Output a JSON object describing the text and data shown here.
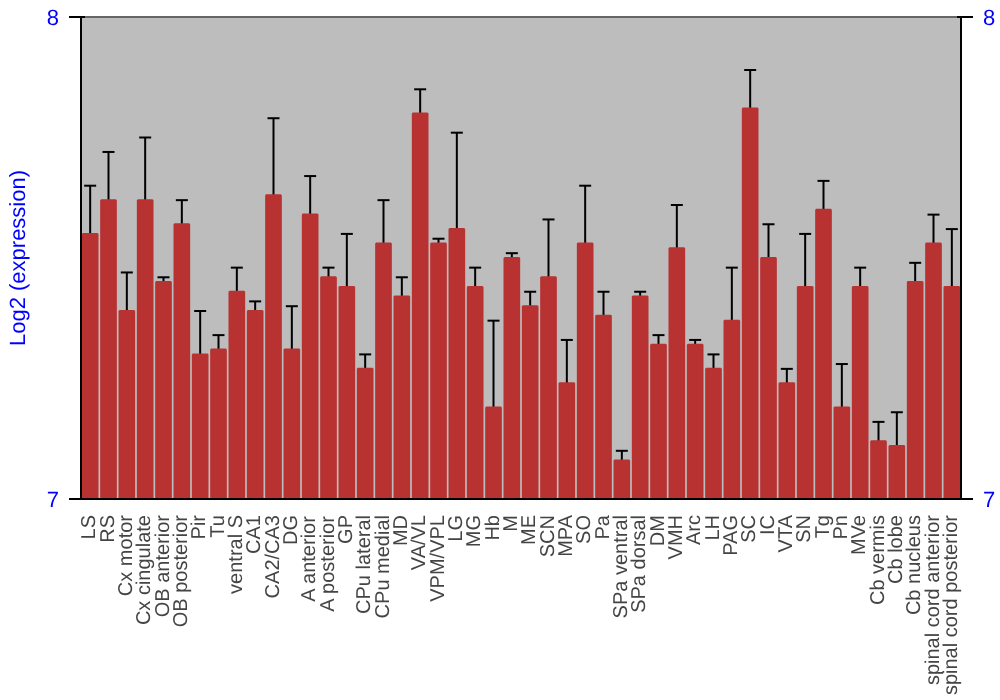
{
  "chart_data": {
    "type": "bar",
    "ylabel": "Log2 (expression)",
    "categories": [
      "LS",
      "RS",
      "Cx motor",
      "Cx cingulate",
      "OB anterior",
      "OB posterior",
      "Pir",
      "Tu",
      "ventral S",
      "CA1",
      "CA2/CA3",
      "DG",
      "A anterior",
      "A posterior",
      "GP",
      "CPu lateral",
      "CPu medial",
      "MD",
      "VA/VL",
      "VPM/VPL",
      "LG",
      "MG",
      "Hb",
      "M",
      "ME",
      "SCN",
      "MPA",
      "SO",
      "Pa",
      "SPa ventral",
      "SPa dorsal",
      "DM",
      "VMH",
      "Arc",
      "LH",
      "PAG",
      "SC",
      "IC",
      "VTA",
      "SN",
      "Tg",
      "Pn",
      "MVe",
      "Cb vermis",
      "Cb lobe",
      "Cb nucleus",
      "spinal cord anterior",
      "spinal cord posterior"
    ],
    "values": [
      7.55,
      7.62,
      7.39,
      7.62,
      7.45,
      7.57,
      7.3,
      7.31,
      7.43,
      7.39,
      7.63,
      7.31,
      7.59,
      7.46,
      7.44,
      7.27,
      7.53,
      7.42,
      7.8,
      7.53,
      7.56,
      7.44,
      7.19,
      7.5,
      7.4,
      7.46,
      7.24,
      7.53,
      7.38,
      7.08,
      7.42,
      7.32,
      7.52,
      7.32,
      7.27,
      7.37,
      7.81,
      7.5,
      7.24,
      7.44,
      7.6,
      7.19,
      7.44,
      7.12,
      7.11,
      7.45,
      7.53,
      7.44
    ],
    "errors": [
      0.1,
      0.1,
      0.08,
      0.13,
      0.01,
      0.05,
      0.09,
      0.03,
      0.05,
      0.02,
      0.16,
      0.09,
      0.08,
      0.02,
      0.11,
      0.03,
      0.09,
      0.04,
      0.05,
      0.01,
      0.2,
      0.04,
      0.18,
      0.01,
      0.03,
      0.12,
      0.09,
      0.12,
      0.05,
      0.02,
      0.01,
      0.02,
      0.09,
      0.01,
      0.03,
      0.11,
      0.08,
      0.07,
      0.03,
      0.11,
      0.06,
      0.09,
      0.04,
      0.04,
      0.07,
      0.04,
      0.06,
      0.12
    ],
    "color": "#b83232",
    "ylim": [
      7,
      8
    ],
    "yticks": [
      7,
      8
    ],
    "y2lim": [
      7,
      8
    ],
    "y2ticks": [
      7,
      8
    ],
    "grid": false
  }
}
